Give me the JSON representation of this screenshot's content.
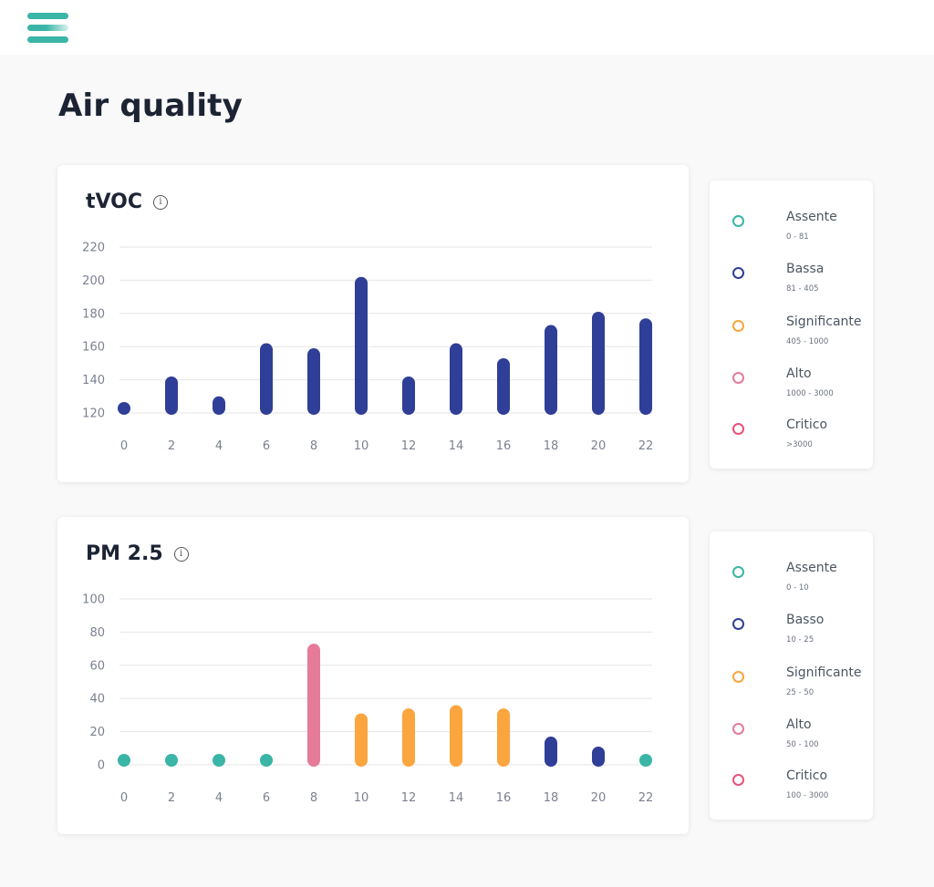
{
  "page": {
    "title": "Air quality"
  },
  "menu": {
    "icon": "hamburger-menu-icon"
  },
  "colors": {
    "assente": "#3ab5a6",
    "bassa": "#2f3e97",
    "significante": "#fba53f",
    "alto": "#e57b98",
    "critico": "#e8527a",
    "grid": "#e6e6e6"
  },
  "tvoc": {
    "title": "tVOC",
    "legend": [
      {
        "label": "Assente",
        "range": "0 - 81",
        "level": "assente"
      },
      {
        "label": "Bassa",
        "range": "81 - 405",
        "level": "bassa"
      },
      {
        "label": "Significante",
        "range": "405 - 1000",
        "level": "significante"
      },
      {
        "label": "Alto",
        "range": "1000 - 3000",
        "level": "alto"
      },
      {
        "label": "Critico",
        "range": ">3000",
        "level": "critico"
      }
    ]
  },
  "pm25": {
    "title": "PM 2.5",
    "legend": [
      {
        "label": "Assente",
        "range": "0 - 10",
        "level": "assente"
      },
      {
        "label": "Basso",
        "range": "10 - 25",
        "level": "bassa"
      },
      {
        "label": "Significante",
        "range": "25 - 50",
        "level": "significante"
      },
      {
        "label": "Alto",
        "range": "50 - 100",
        "level": "alto"
      },
      {
        "label": "Critico",
        "range": "100 - 3000",
        "level": "critico"
      }
    ]
  },
  "chart_data": [
    {
      "type": "bar",
      "title": "tVOC",
      "categories": [
        "0",
        "2",
        "4",
        "6",
        "8",
        "10",
        "12",
        "14",
        "16",
        "18",
        "20",
        "22"
      ],
      "ylim": [
        120,
        220
      ],
      "yticks": [
        120,
        140,
        160,
        180,
        200,
        220
      ],
      "grid": true,
      "series": [
        {
          "values": [
            126,
            142,
            130,
            162,
            159,
            202,
            142,
            162,
            153,
            173,
            181,
            177
          ],
          "levels": [
            "bassa",
            "bassa",
            "bassa",
            "bassa",
            "bassa",
            "bassa",
            "bassa",
            "bassa",
            "bassa",
            "bassa",
            "bassa",
            "bassa"
          ]
        }
      ]
    },
    {
      "type": "bar",
      "title": "PM 2.5",
      "categories": [
        "0",
        "2",
        "4",
        "6",
        "8",
        "10",
        "12",
        "14",
        "16",
        "18",
        "20",
        "22"
      ],
      "ylim": [
        0,
        100
      ],
      "yticks": [
        0,
        20,
        40,
        60,
        80,
        100
      ],
      "grid": true,
      "series": [
        {
          "values": [
            4,
            4,
            5,
            5,
            73,
            31,
            34,
            36,
            34,
            17,
            11,
            2
          ],
          "levels": [
            "assente",
            "assente",
            "assente",
            "assente",
            "alto",
            "significante",
            "significante",
            "significante",
            "significante",
            "bassa",
            "bassa",
            "assente"
          ]
        }
      ]
    }
  ]
}
